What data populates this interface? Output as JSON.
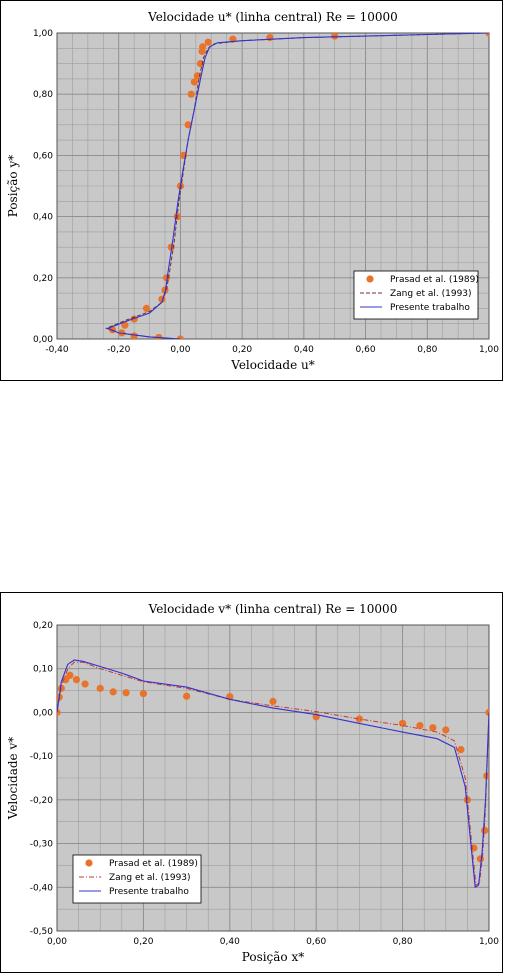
{
  "chart_data": [
    {
      "type": "line",
      "title": "Velocidade u* (linha central) Re = 10000",
      "xlabel": "Velocidade u*",
      "ylabel": "Posição y*",
      "xlim": [
        -0.4,
        1.0
      ],
      "ylim": [
        0.0,
        1.0
      ],
      "x_ticks": [
        "-0,40",
        "-0,20",
        "0,00",
        "0,20",
        "0,40",
        "0,60",
        "0,80",
        "1,00"
      ],
      "y_ticks": [
        "0,00",
        "0,20",
        "0,40",
        "0,60",
        "0,80",
        "1,00"
      ],
      "grid": true,
      "legend_position": "bottom-right",
      "series": [
        {
          "name": "Prasad et al. (1989)",
          "style": "markers",
          "color": "#E8732A",
          "points": [
            [
              -0.0,
              0.0
            ],
            [
              -0.07,
              0.005
            ],
            [
              -0.15,
              0.01
            ],
            [
              -0.19,
              0.02
            ],
            [
              -0.22,
              0.03
            ],
            [
              -0.18,
              0.045
            ],
            [
              -0.15,
              0.065
            ],
            [
              -0.11,
              0.1
            ],
            [
              -0.06,
              0.13
            ],
            [
              -0.05,
              0.16
            ],
            [
              -0.045,
              0.2
            ],
            [
              -0.03,
              0.3
            ],
            [
              -0.01,
              0.4
            ],
            [
              0.0,
              0.5
            ],
            [
              0.01,
              0.6
            ],
            [
              0.025,
              0.7
            ],
            [
              0.035,
              0.8
            ],
            [
              0.045,
              0.84
            ],
            [
              0.055,
              0.86
            ],
            [
              0.065,
              0.9
            ],
            [
              0.07,
              0.94
            ],
            [
              0.072,
              0.955
            ],
            [
              0.09,
              0.97
            ],
            [
              0.17,
              0.98
            ],
            [
              0.29,
              0.985
            ],
            [
              0.5,
              0.99
            ],
            [
              1.0,
              1.0
            ]
          ]
        },
        {
          "name": "Zang et al. (1993)",
          "style": "dashed",
          "color": "#7A2E2E",
          "points": [
            [
              0.0,
              0.0
            ],
            [
              -0.1,
              0.007
            ],
            [
              -0.2,
              0.02
            ],
            [
              -0.24,
              0.035
            ],
            [
              -0.18,
              0.06
            ],
            [
              -0.1,
              0.09
            ],
            [
              -0.06,
              0.12
            ],
            [
              -0.045,
              0.16
            ],
            [
              -0.035,
              0.22
            ],
            [
              -0.02,
              0.32
            ],
            [
              -0.005,
              0.45
            ],
            [
              0.01,
              0.55
            ],
            [
              0.025,
              0.65
            ],
            [
              0.045,
              0.75
            ],
            [
              0.06,
              0.85
            ],
            [
              0.075,
              0.92
            ],
            [
              0.09,
              0.95
            ],
            [
              0.11,
              0.965
            ],
            [
              0.2,
              0.975
            ],
            [
              0.4,
              0.985
            ],
            [
              0.6,
              0.99
            ],
            [
              0.8,
              0.995
            ],
            [
              1.0,
              1.0
            ]
          ]
        },
        {
          "name": "Presente trabalho",
          "style": "solid",
          "color": "#3333CC",
          "points": [
            [
              0.0,
              0.0
            ],
            [
              -0.1,
              0.007
            ],
            [
              -0.2,
              0.02
            ],
            [
              -0.235,
              0.035
            ],
            [
              -0.17,
              0.06
            ],
            [
              -0.1,
              0.085
            ],
            [
              -0.06,
              0.12
            ],
            [
              -0.048,
              0.16
            ],
            [
              -0.04,
              0.22
            ],
            [
              -0.025,
              0.32
            ],
            [
              -0.008,
              0.45
            ],
            [
              0.008,
              0.55
            ],
            [
              0.025,
              0.65
            ],
            [
              0.045,
              0.75
            ],
            [
              0.065,
              0.85
            ],
            [
              0.08,
              0.92
            ],
            [
              0.095,
              0.955
            ],
            [
              0.12,
              0.968
            ],
            [
              0.2,
              0.975
            ],
            [
              0.4,
              0.985
            ],
            [
              0.6,
              0.99
            ],
            [
              0.8,
              0.995
            ],
            [
              1.0,
              1.0
            ]
          ]
        }
      ]
    },
    {
      "type": "line",
      "title": "Velocidade v* (linha central) Re = 10000",
      "xlabel": "Posição x*",
      "ylabel": "Velocidade v*",
      "xlim": [
        0.0,
        1.0
      ],
      "ylim": [
        -0.5,
        0.2
      ],
      "x_ticks": [
        "0,00",
        "0,20",
        "0,40",
        "0,60",
        "0,80",
        "1,00"
      ],
      "y_ticks": [
        "-0,50",
        "-0,40",
        "-0,30",
        "-0,20",
        "-0,10",
        "0,00",
        "0,10",
        "0,20"
      ],
      "grid": true,
      "legend_position": "bottom-left",
      "series": [
        {
          "name": "Prasad et al. (1989)",
          "style": "markers",
          "color": "#E8732A",
          "points": [
            [
              0.0,
              0.0
            ],
            [
              0.005,
              0.035
            ],
            [
              0.01,
              0.055
            ],
            [
              0.02,
              0.075
            ],
            [
              0.03,
              0.085
            ],
            [
              0.045,
              0.075
            ],
            [
              0.065,
              0.065
            ],
            [
              0.1,
              0.055
            ],
            [
              0.13,
              0.047
            ],
            [
              0.16,
              0.045
            ],
            [
              0.2,
              0.043
            ],
            [
              0.3,
              0.037
            ],
            [
              0.4,
              0.036
            ],
            [
              0.5,
              0.025
            ],
            [
              0.6,
              -0.01
            ],
            [
              0.7,
              -0.015
            ],
            [
              0.8,
              -0.025
            ],
            [
              0.84,
              -0.03
            ],
            [
              0.87,
              -0.035
            ],
            [
              0.9,
              -0.04
            ],
            [
              0.935,
              -0.085
            ],
            [
              0.95,
              -0.2
            ],
            [
              0.965,
              -0.31
            ],
            [
              0.98,
              -0.335
            ],
            [
              0.99,
              -0.27
            ],
            [
              0.995,
              -0.145
            ],
            [
              1.0,
              0.0
            ]
          ]
        },
        {
          "name": "Zang et al. (1993)",
          "style": "dashdot",
          "color": "#CC3333",
          "points": [
            [
              0.0,
              0.0
            ],
            [
              0.01,
              0.06
            ],
            [
              0.025,
              0.1
            ],
            [
              0.04,
              0.115
            ],
            [
              0.06,
              0.115
            ],
            [
              0.1,
              0.1
            ],
            [
              0.15,
              0.085
            ],
            [
              0.2,
              0.07
            ],
            [
              0.3,
              0.055
            ],
            [
              0.4,
              0.03
            ],
            [
              0.5,
              0.015
            ],
            [
              0.6,
              0.002
            ],
            [
              0.7,
              -0.015
            ],
            [
              0.8,
              -0.03
            ],
            [
              0.88,
              -0.045
            ],
            [
              0.92,
              -0.065
            ],
            [
              0.945,
              -0.15
            ],
            [
              0.96,
              -0.3
            ],
            [
              0.97,
              -0.395
            ],
            [
              0.978,
              -0.39
            ],
            [
              0.985,
              -0.33
            ],
            [
              0.992,
              -0.22
            ],
            [
              1.0,
              0.0
            ]
          ]
        },
        {
          "name": "Presente trabalho",
          "style": "solid",
          "color": "#3333CC",
          "points": [
            [
              0.0,
              0.0
            ],
            [
              0.01,
              0.07
            ],
            [
              0.025,
              0.11
            ],
            [
              0.04,
              0.12
            ],
            [
              0.06,
              0.117
            ],
            [
              0.1,
              0.105
            ],
            [
              0.15,
              0.09
            ],
            [
              0.2,
              0.072
            ],
            [
              0.3,
              0.058
            ],
            [
              0.4,
              0.03
            ],
            [
              0.5,
              0.01
            ],
            [
              0.6,
              -0.005
            ],
            [
              0.7,
              -0.025
            ],
            [
              0.8,
              -0.045
            ],
            [
              0.88,
              -0.06
            ],
            [
              0.92,
              -0.08
            ],
            [
              0.945,
              -0.17
            ],
            [
              0.96,
              -0.32
            ],
            [
              0.968,
              -0.4
            ],
            [
              0.976,
              -0.395
            ],
            [
              0.984,
              -0.32
            ],
            [
              0.992,
              -0.2
            ],
            [
              1.0,
              0.0
            ]
          ]
        }
      ]
    }
  ]
}
